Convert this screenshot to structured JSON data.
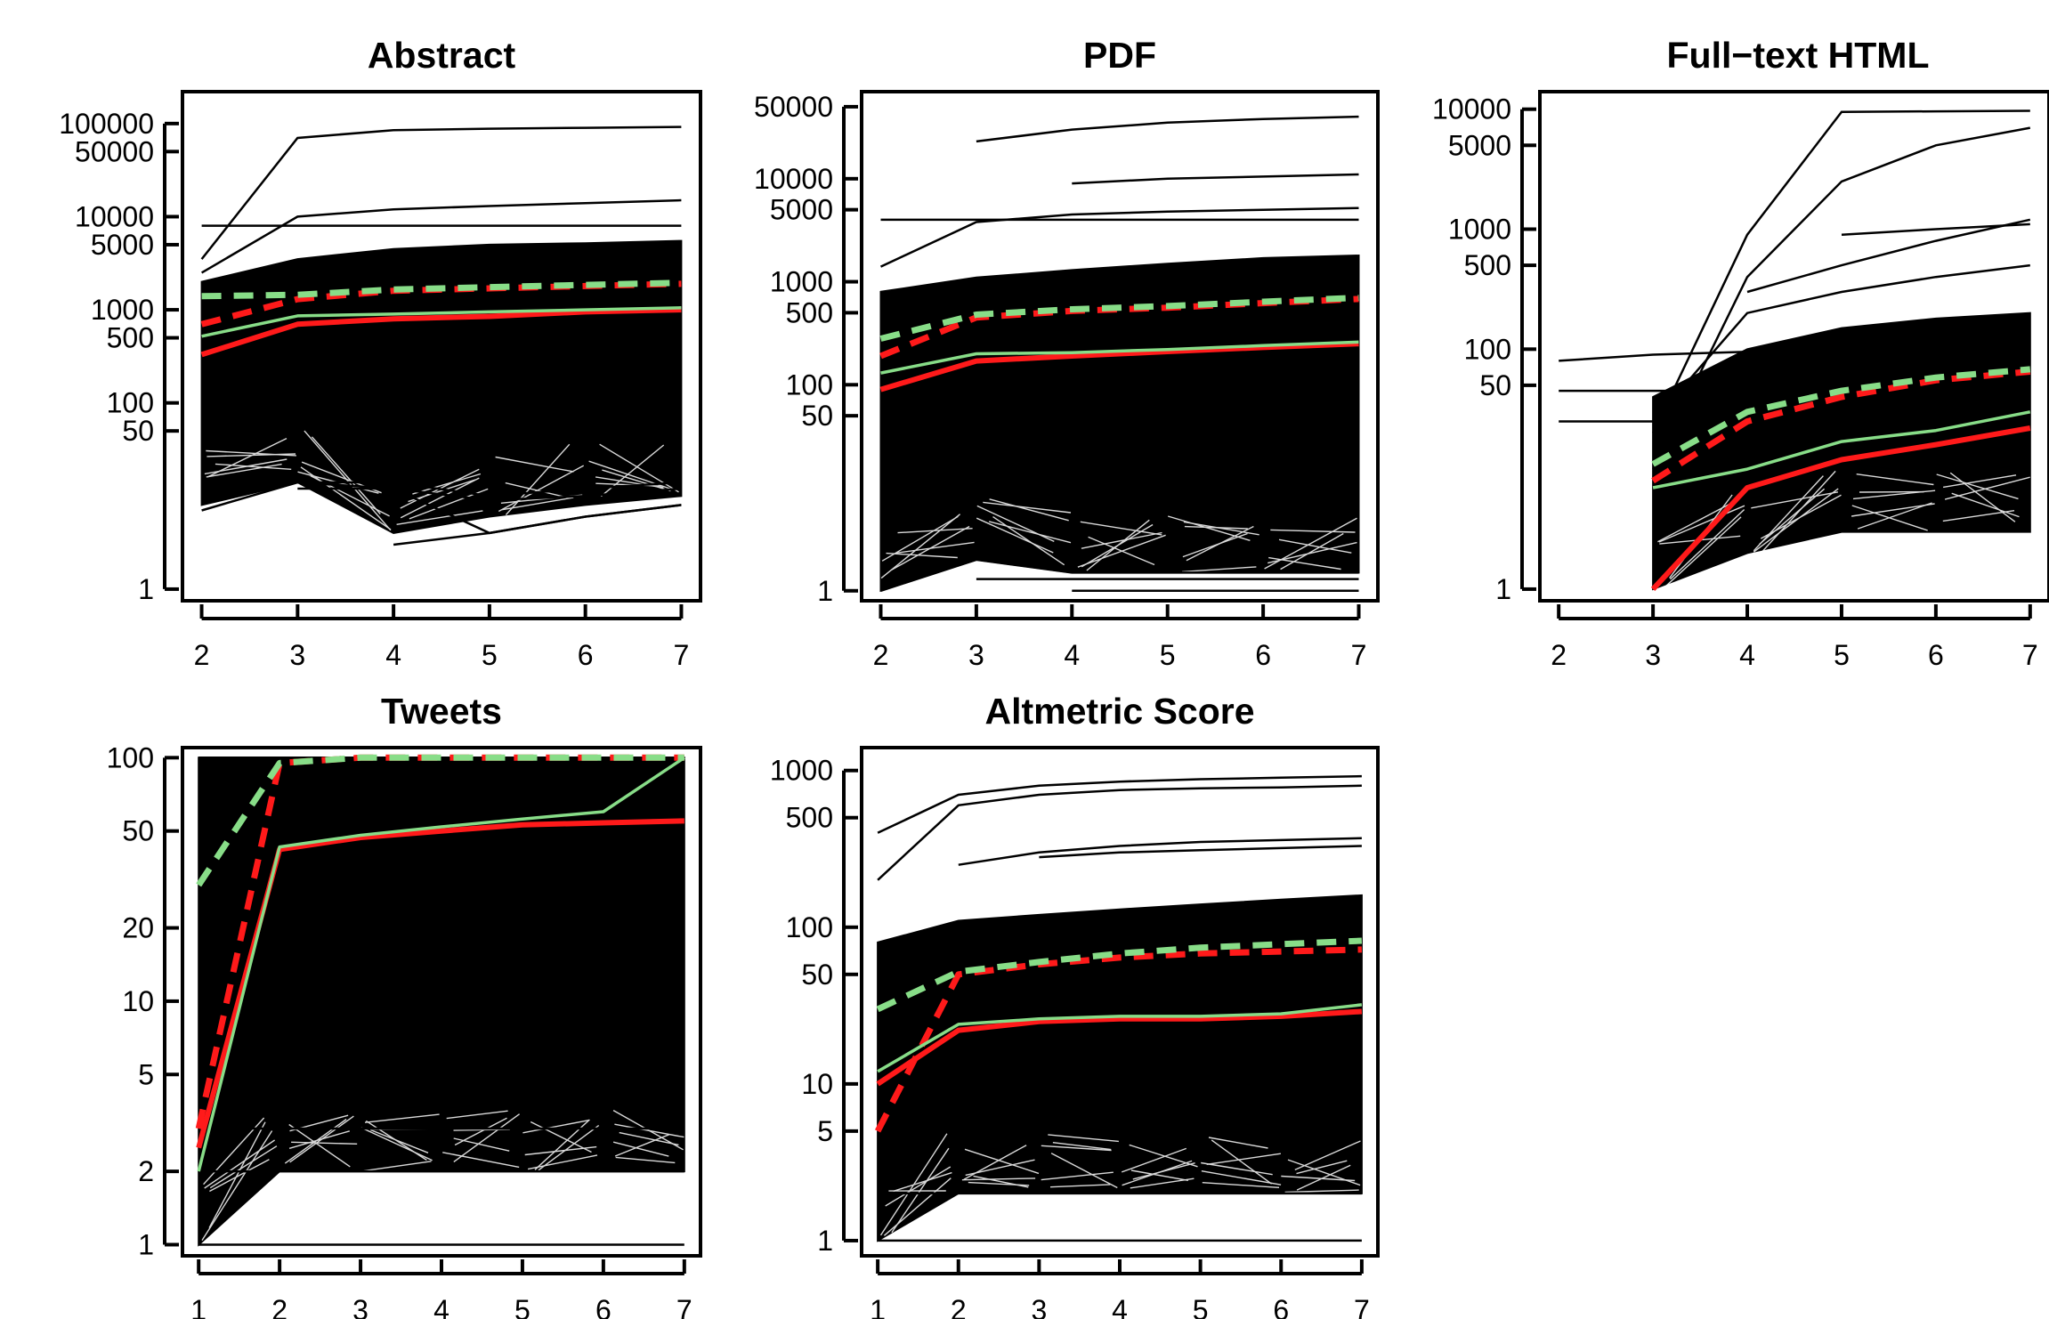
{
  "colors": {
    "individual": "#000000",
    "mean": "#ff1a1a",
    "median": "#88dd88"
  },
  "chart_data": [
    {
      "type": "line",
      "title": "Abstract",
      "log_y": true,
      "xlim": [
        1.8,
        7.2
      ],
      "ylim": [
        0.75,
        220000
      ],
      "x_ticks": [
        2,
        3,
        4,
        5,
        6,
        7
      ],
      "y_ticks": [
        {
          "v": 1,
          "label": "1"
        },
        {
          "v": 50,
          "label": "50"
        },
        {
          "v": 100,
          "label": "100"
        },
        {
          "v": 500,
          "label": "500"
        },
        {
          "v": 1000,
          "label": "1000"
        },
        {
          "v": 5000,
          "label": "5000"
        },
        {
          "v": 10000,
          "label": "10000"
        },
        {
          "v": 50000,
          "label": "50000"
        },
        {
          "v": 100000,
          "label": "100000"
        }
      ],
      "x": [
        2,
        3,
        4,
        5,
        6,
        7
      ],
      "band": {
        "low": [
          8,
          14,
          4,
          6,
          8,
          10
        ],
        "high": [
          2000,
          3500,
          4500,
          5000,
          5200,
          5500
        ]
      },
      "highlight_paths": [
        [
          8000,
          8000,
          8000,
          8000,
          8000,
          8000
        ],
        [
          3500,
          70000,
          85000,
          88000,
          90000,
          92000
        ],
        [
          2500,
          10000,
          12000,
          13000,
          14000,
          15000
        ],
        [
          1200,
          3000,
          3500,
          4000,
          4500,
          5000
        ],
        [
          7,
          14,
          14,
          10,
          12,
          14
        ],
        [
          9,
          14,
          12,
          9,
          10,
          12
        ],
        [
          null,
          12,
          12,
          4,
          6,
          8
        ],
        [
          null,
          null,
          3,
          4,
          6,
          8
        ]
      ],
      "series": [
        {
          "name": "",
          "role": "mean",
          "style": "dashed",
          "values": [
            700,
            1300,
            1600,
            1700,
            1800,
            1900
          ]
        },
        {
          "name": "",
          "role": "median",
          "style": "dashed",
          "values": [
            1400,
            1450,
            1650,
            1750,
            1850,
            1950
          ]
        },
        {
          "name": "",
          "role": "mean",
          "style": "solid",
          "values": [
            330,
            700,
            800,
            850,
            950,
            1000
          ]
        },
        {
          "name": "",
          "role": "median",
          "style": "solid",
          "values": [
            520,
            860,
            900,
            950,
            1000,
            1050
          ]
        }
      ]
    },
    {
      "type": "line",
      "title": "PDF",
      "log_y": true,
      "xlim": [
        1.8,
        7.2
      ],
      "ylim": [
        0.8,
        70000
      ],
      "x_ticks": [
        2,
        3,
        4,
        5,
        6,
        7
      ],
      "y_ticks": [
        {
          "v": 1,
          "label": "1"
        },
        {
          "v": 50,
          "label": "50"
        },
        {
          "v": 100,
          "label": "100"
        },
        {
          "v": 500,
          "label": "500"
        },
        {
          "v": 1000,
          "label": "1000"
        },
        {
          "v": 5000,
          "label": "5000"
        },
        {
          "v": 10000,
          "label": "10000"
        },
        {
          "v": 50000,
          "label": "50000"
        }
      ],
      "x": [
        2,
        3,
        4,
        5,
        6,
        7
      ],
      "band": {
        "low": [
          1,
          2,
          1.5,
          1.5,
          1.5,
          1.5
        ],
        "high": [
          800,
          1100,
          1300,
          1500,
          1700,
          1800
        ]
      },
      "highlight_paths": [
        [
          4000,
          4000,
          4000,
          4000,
          4000,
          4000
        ],
        [
          null,
          23000,
          30000,
          35000,
          38000,
          40000
        ],
        [
          null,
          null,
          9000,
          10000,
          10500,
          11000
        ],
        [
          1400,
          3800,
          4500,
          4800,
          5000,
          5200
        ],
        [
          null,
          1.3,
          1.3,
          1.3,
          1.3,
          1.3
        ],
        [
          null,
          null,
          1,
          1,
          1,
          1
        ],
        [
          1,
          2,
          1.5,
          1.5,
          1.5,
          1.5
        ]
      ],
      "series": [
        {
          "name": "",
          "role": "mean",
          "style": "dashed",
          "values": [
            190,
            450,
            520,
            560,
            620,
            680
          ]
        },
        {
          "name": "",
          "role": "median",
          "style": "dashed",
          "values": [
            280,
            480,
            540,
            580,
            640,
            700
          ]
        },
        {
          "name": "",
          "role": "mean",
          "style": "solid",
          "values": [
            90,
            170,
            190,
            210,
            230,
            250
          ]
        },
        {
          "name": "",
          "role": "median",
          "style": "solid",
          "values": [
            130,
            200,
            205,
            220,
            240,
            260
          ]
        }
      ]
    },
    {
      "type": "line",
      "title": "Full−text HTML",
      "log_y": true,
      "xlim": [
        1.8,
        7.2
      ],
      "ylim": [
        0.8,
        14000
      ],
      "x_ticks": [
        2,
        3,
        4,
        5,
        6,
        7
      ],
      "y_ticks": [
        {
          "v": 1,
          "label": "1"
        },
        {
          "v": 50,
          "label": "50"
        },
        {
          "v": 100,
          "label": "100"
        },
        {
          "v": 500,
          "label": "500"
        },
        {
          "v": 1000,
          "label": "1000"
        },
        {
          "v": 5000,
          "label": "5000"
        },
        {
          "v": 10000,
          "label": "10000"
        }
      ],
      "x": [
        2,
        3,
        4,
        5,
        6,
        7
      ],
      "band": {
        "low": [
          null,
          1,
          2,
          3,
          3,
          3
        ],
        "high": [
          null,
          40,
          100,
          150,
          180,
          200
        ]
      },
      "highlight_paths": [
        [
          80,
          90,
          95,
          100,
          100,
          100
        ],
        [
          45,
          45,
          45,
          45,
          45,
          45
        ],
        [
          25,
          25,
          25,
          25,
          25,
          25
        ],
        [
          null,
          20,
          900,
          9500,
          9600,
          9700
        ],
        [
          null,
          10,
          400,
          2500,
          5000,
          7000
        ],
        [
          null,
          null,
          300,
          500,
          800,
          1200
        ],
        [
          null,
          null,
          null,
          900,
          1000,
          1100
        ],
        [
          null,
          25,
          200,
          300,
          400,
          500
        ]
      ],
      "series": [
        {
          "name": "",
          "role": "mean",
          "style": "dashed",
          "values": [
            null,
            8,
            25,
            40,
            55,
            65
          ]
        },
        {
          "name": "",
          "role": "median",
          "style": "dashed",
          "values": [
            null,
            11,
            30,
            45,
            58,
            68
          ]
        },
        {
          "name": "",
          "role": "mean",
          "style": "solid",
          "values": [
            null,
            1,
            7,
            12,
            16,
            22
          ]
        },
        {
          "name": "",
          "role": "median",
          "style": "solid",
          "values": [
            null,
            7,
            10,
            17,
            21,
            30
          ]
        }
      ]
    },
    {
      "type": "line",
      "title": "Tweets",
      "log_y": true,
      "xlim": [
        0.8,
        7.2
      ],
      "ylim": [
        0.9,
        110
      ],
      "x_ticks": [
        1,
        2,
        3,
        4,
        5,
        6,
        7
      ],
      "y_ticks": [
        {
          "v": 1,
          "label": "1"
        },
        {
          "v": 2,
          "label": "2"
        },
        {
          "v": 5,
          "label": "5"
        },
        {
          "v": 10,
          "label": "10"
        },
        {
          "v": 20,
          "label": "20"
        },
        {
          "v": 50,
          "label": "50"
        },
        {
          "v": 100,
          "label": "100"
        }
      ],
      "x": [
        1,
        2,
        3,
        4,
        5,
        6,
        7
      ],
      "band": {
        "low": [
          1,
          2,
          2,
          2,
          2,
          2,
          2
        ],
        "high": [
          100,
          100,
          100,
          100,
          100,
          100,
          100
        ]
      },
      "highlight_paths": [
        [
          1,
          1,
          1,
          1,
          1,
          1,
          1
        ],
        [
          2,
          2,
          2,
          2,
          2,
          2,
          2
        ],
        [
          3,
          3,
          3,
          3,
          3,
          3,
          3
        ],
        [
          100,
          100,
          100,
          100,
          100,
          100,
          100
        ]
      ],
      "series": [
        {
          "name": "",
          "role": "mean",
          "style": "dashed",
          "values": [
            3,
            95,
            100,
            100,
            100,
            100,
            100
          ]
        },
        {
          "name": "",
          "role": "median",
          "style": "dashed",
          "values": [
            30,
            95,
            100,
            100,
            100,
            100,
            100
          ]
        },
        {
          "name": "",
          "role": "mean",
          "style": "solid",
          "values": [
            2.5,
            42,
            47,
            50,
            53,
            54,
            55
          ]
        },
        {
          "name": "",
          "role": "median",
          "style": "solid",
          "values": [
            2,
            43,
            48,
            52,
            56,
            60,
            100
          ]
        }
      ]
    },
    {
      "type": "line",
      "title": "Altmetric Score",
      "log_y": true,
      "xlim": [
        0.8,
        7.2
      ],
      "ylim": [
        0.8,
        1400
      ],
      "x_ticks": [
        1,
        2,
        3,
        4,
        5,
        6,
        7
      ],
      "y_ticks": [
        {
          "v": 1,
          "label": "1"
        },
        {
          "v": 5,
          "label": "5"
        },
        {
          "v": 10,
          "label": "10"
        },
        {
          "v": 50,
          "label": "50"
        },
        {
          "v": 100,
          "label": "100"
        },
        {
          "v": 500,
          "label": "500"
        },
        {
          "v": 1000,
          "label": "1000"
        }
      ],
      "x": [
        1,
        2,
        3,
        4,
        5,
        6,
        7
      ],
      "band": {
        "low": [
          1,
          2,
          2,
          2,
          2,
          2,
          2
        ],
        "high": [
          80,
          110,
          120,
          130,
          140,
          150,
          160
        ]
      },
      "highlight_paths": [
        [
          400,
          700,
          800,
          850,
          880,
          900,
          920
        ],
        [
          200,
          600,
          700,
          750,
          770,
          780,
          800
        ],
        [
          null,
          250,
          300,
          330,
          350,
          360,
          370
        ],
        [
          null,
          null,
          280,
          300,
          310,
          320,
          330
        ],
        [
          1,
          1,
          1,
          1,
          1,
          1,
          1
        ],
        [
          2,
          2,
          2,
          2,
          2,
          2,
          2
        ]
      ],
      "series": [
        {
          "name": "",
          "role": "mean",
          "style": "dashed",
          "values": [
            5,
            50,
            58,
            64,
            68,
            70,
            72
          ]
        },
        {
          "name": "",
          "role": "median",
          "style": "dashed",
          "values": [
            30,
            52,
            60,
            68,
            74,
            78,
            82
          ]
        },
        {
          "name": "",
          "role": "mean",
          "style": "solid",
          "values": [
            10,
            22,
            25,
            26,
            26,
            27,
            29
          ]
        },
        {
          "name": "",
          "role": "median",
          "style": "solid",
          "values": [
            12,
            24,
            26,
            27,
            27,
            28,
            32
          ]
        }
      ]
    }
  ]
}
